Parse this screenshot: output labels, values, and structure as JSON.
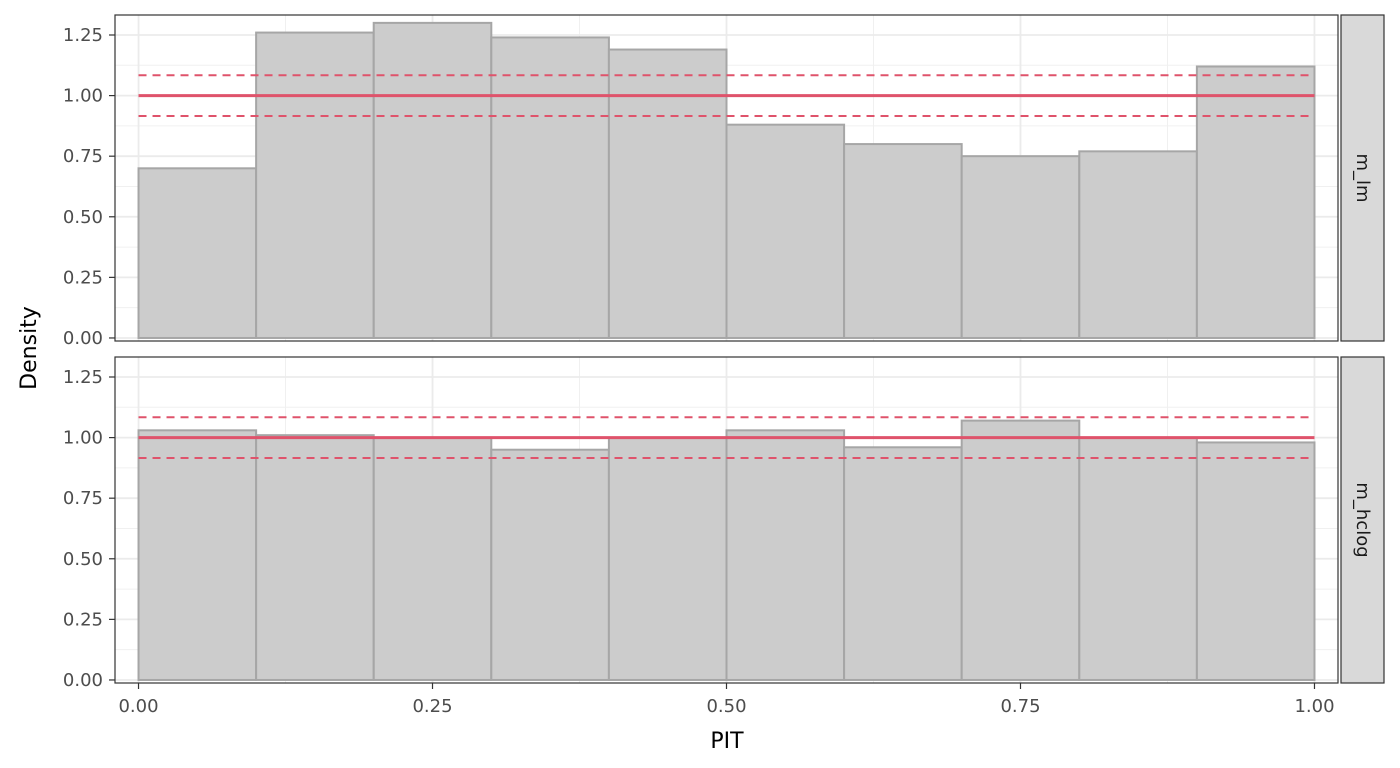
{
  "chart_data": {
    "type": "bar",
    "xlabel": "PIT",
    "ylabel": "Density",
    "xlim": [
      -0.02,
      1.02
    ],
    "ylim": [
      -0.0125,
      1.3325
    ],
    "x_ticks": [
      0,
      0.25,
      0.5,
      0.75,
      1
    ],
    "x_tick_labels": [
      "0.00",
      "0.25",
      "0.50",
      "0.75",
      "1.00"
    ],
    "y_ticks": [
      0,
      0.25,
      0.5,
      0.75,
      1,
      1.25
    ],
    "y_tick_labels": [
      "0.00",
      "0.25",
      "0.50",
      "0.75",
      "1.00",
      "1.25"
    ],
    "bin_edges": [
      0,
      0.1,
      0.2,
      0.3,
      0.4,
      0.5,
      0.6,
      0.7,
      0.8,
      0.9,
      1.0
    ],
    "reference": {
      "value": 1.0,
      "lower": 0.916,
      "upper": 1.084
    },
    "grid": true,
    "colors": {
      "bar_fill": "#cccccc",
      "bar_stroke": "#a6a6a6",
      "reference": "#df536b"
    },
    "panels": [
      {
        "name": "m_lm",
        "values": [
          0.7,
          1.26,
          1.3,
          1.24,
          1.19,
          0.88,
          0.8,
          0.75,
          0.77,
          1.12
        ]
      },
      {
        "name": "m_hclog",
        "values": [
          1.03,
          1.01,
          1.0,
          0.95,
          1.0,
          1.03,
          0.96,
          1.07,
          1.0,
          0.98
        ]
      }
    ]
  }
}
